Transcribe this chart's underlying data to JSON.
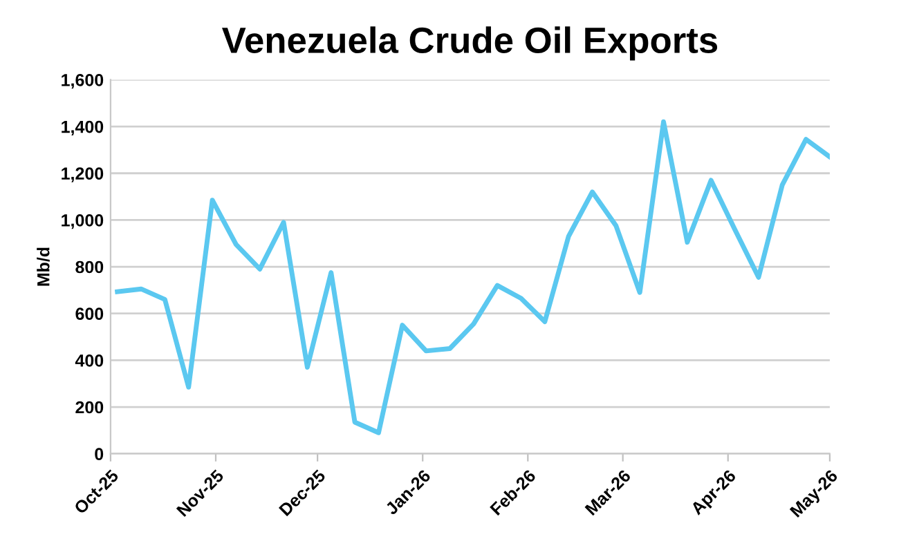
{
  "chart_data": {
    "type": "line",
    "title": "Venezuela Crude Oil Exports",
    "ylabel": "Mb/d",
    "x": [
      "2025-10-03",
      "2025-10-10",
      "2025-10-17",
      "2025-10-24",
      "2025-10-31",
      "2025-11-07",
      "2025-11-14",
      "2025-11-21",
      "2025-11-28",
      "2025-12-05",
      "2025-12-12",
      "2025-12-19",
      "2025-12-26",
      "2026-01-02",
      "2026-01-09",
      "2026-01-16",
      "2026-01-23",
      "2026-01-30",
      "2026-02-06",
      "2026-02-13",
      "2026-02-20",
      "2026-02-27",
      "2026-03-06",
      "2026-03-13",
      "2026-03-20",
      "2026-03-27",
      "2026-04-03",
      "2026-04-10",
      "2026-04-17",
      "2026-04-24",
      "2026-05-01"
    ],
    "series": [
      {
        "color": "#5bc8f0",
        "values": [
          693,
          705,
          660,
          285,
          1085,
          895,
          790,
          990,
          370,
          775,
          135,
          90,
          550,
          440,
          450,
          555,
          720,
          665,
          565,
          930,
          1120,
          975,
          690,
          1420,
          905,
          1170,
          960,
          755,
          1150,
          1345,
          1270
        ]
      }
    ],
    "xlim": [
      "2025-10-01",
      "2026-05-01"
    ],
    "xticks": [
      {
        "value": "2025-10-01",
        "label": "Oct-25"
      },
      {
        "value": "2025-11-01",
        "label": "Nov-25"
      },
      {
        "value": "2025-12-01",
        "label": "Dec-25"
      },
      {
        "value": "2026-01-01",
        "label": "Jan-26"
      },
      {
        "value": "2026-02-01",
        "label": "Feb-26"
      },
      {
        "value": "2026-03-01",
        "label": "Mar-26"
      },
      {
        "value": "2026-04-01",
        "label": "Apr-26"
      },
      {
        "value": "2026-05-01",
        "label": "May-26"
      }
    ],
    "ylim": [
      0,
      1600
    ],
    "yticks": [
      0,
      200,
      400,
      600,
      800,
      {
        "value": 1000,
        "label": "1,000"
      },
      {
        "value": 1200,
        "label": "1,200"
      },
      {
        "value": 1400,
        "label": "1,400"
      },
      {
        "value": 1600,
        "label": "1,600"
      }
    ],
    "grid": "y",
    "marker": "none",
    "line_style": "solid",
    "legend": false
  }
}
